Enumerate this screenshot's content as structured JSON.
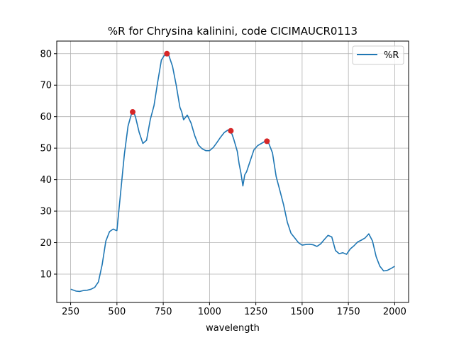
{
  "chart_data": {
    "type": "line",
    "title": "%R for Chrysina kalinini, code CICIMAUCR0113",
    "xlabel": "wavelength",
    "ylabel": "",
    "xlim": [
      175,
      2075
    ],
    "ylim": [
      1,
      84
    ],
    "x_ticks": [
      250,
      500,
      750,
      1000,
      1250,
      1500,
      1750,
      2000
    ],
    "y_ticks": [
      10,
      20,
      30,
      40,
      50,
      60,
      70,
      80
    ],
    "grid": true,
    "legend_position": "top-right",
    "colors": {
      "line": "#1f77b4",
      "peaks": "#d62728"
    },
    "series": [
      {
        "name": "%R",
        "x": [
          250,
          280,
          300,
          320,
          340,
          360,
          380,
          400,
          420,
          440,
          460,
          480,
          490,
          500,
          520,
          540,
          560,
          580,
          590,
          600,
          620,
          640,
          660,
          680,
          700,
          720,
          740,
          760,
          770,
          780,
          800,
          820,
          840,
          850,
          860,
          880,
          900,
          920,
          940,
          960,
          980,
          1000,
          1020,
          1040,
          1060,
          1080,
          1100,
          1115,
          1130,
          1150,
          1160,
          1170,
          1180,
          1190,
          1200,
          1220,
          1240,
          1260,
          1280,
          1300,
          1310,
          1320,
          1340,
          1360,
          1380,
          1400,
          1420,
          1440,
          1460,
          1480,
          1500,
          1520,
          1540,
          1560,
          1580,
          1600,
          1620,
          1640,
          1660,
          1680,
          1700,
          1720,
          1740,
          1760,
          1780,
          1800,
          1820,
          1840,
          1860,
          1880,
          1900,
          1920,
          1940,
          1960,
          1980,
          2000
        ],
        "values": [
          5.2,
          4.6,
          4.5,
          4.8,
          4.9,
          5.2,
          5.8,
          7.5,
          13,
          20.5,
          23.5,
          24.3,
          24.0,
          23.8,
          36,
          48,
          57,
          61.2,
          61.5,
          60,
          55,
          51.5,
          52.5,
          59,
          63.5,
          71,
          78,
          79.8,
          80,
          79.5,
          76,
          70,
          63,
          61.5,
          59,
          60.5,
          58,
          54,
          51,
          49.8,
          49.2,
          49.2,
          50.2,
          51.8,
          53.5,
          55,
          55.8,
          55.5,
          53,
          49,
          45,
          42,
          38,
          41.5,
          42.5,
          46,
          49.5,
          50.8,
          51.5,
          52.2,
          52.1,
          51.5,
          48.5,
          41,
          36.5,
          32,
          26.5,
          23,
          21.5,
          20,
          19.2,
          19.4,
          19.5,
          19.3,
          18.8,
          19.6,
          21,
          22.3,
          21.8,
          17.5,
          16.5,
          16.8,
          16.3,
          18,
          19,
          20.2,
          20.8,
          21.5,
          22.8,
          20.5,
          15.5,
          12.5,
          11,
          11.2,
          11.8,
          12.5
        ]
      }
    ],
    "peaks": [
      {
        "x": 585,
        "y": 61.5
      },
      {
        "x": 770,
        "y": 80
      },
      {
        "x": 1115,
        "y": 55.5
      },
      {
        "x": 1310,
        "y": 52.2
      }
    ]
  }
}
